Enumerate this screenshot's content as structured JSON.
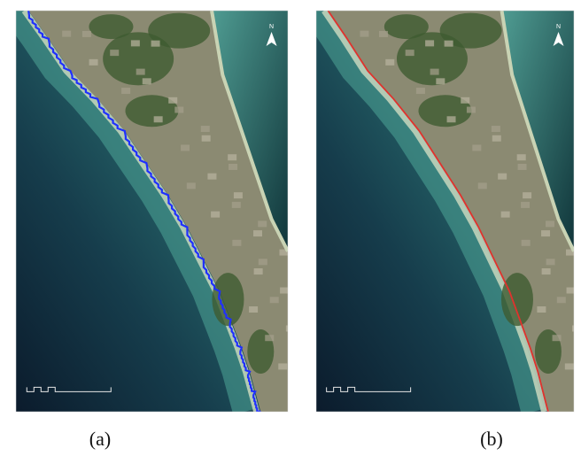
{
  "panels": [
    {
      "caption": "(a)"
    },
    {
      "caption": "(b)"
    }
  ],
  "north_label": "N"
}
